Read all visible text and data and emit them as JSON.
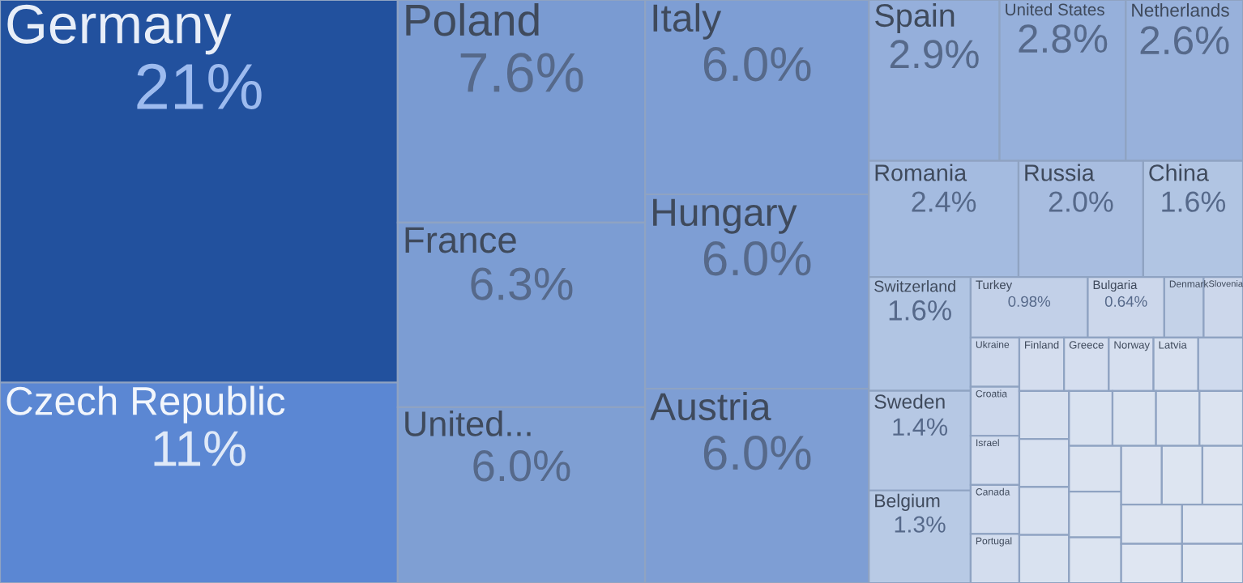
{
  "chart_data": {
    "type": "other",
    "categories": [
      "Germany",
      "Czech Republic",
      "Poland",
      "France",
      "United...",
      "Italy",
      "Hungary",
      "Austria",
      "Spain",
      "United States",
      "Netherlands",
      "Romania",
      "Russia",
      "China",
      "Switzerland",
      "Sweden",
      "Belgium",
      "Turkey",
      "Bulgaria",
      "Denmark",
      "Slovenia",
      "Ukraine",
      "Croatia",
      "Israel",
      "Canada",
      "Portugal",
      "Finland",
      "Greece",
      "Norway",
      "Latvia",
      null,
      null,
      null,
      null,
      null,
      null,
      null,
      null,
      null,
      null,
      null,
      null,
      null,
      null,
      null,
      null,
      null,
      null,
      null
    ],
    "values": [
      21,
      11,
      7.6,
      6.3,
      6.0,
      6.0,
      6.0,
      6.0,
      2.9,
      2.8,
      2.6,
      2.4,
      2.0,
      1.6,
      1.6,
      1.4,
      1.3,
      0.98,
      0.64,
      null,
      null,
      null,
      null,
      null,
      null,
      null,
      null,
      null,
      null,
      null,
      null,
      null,
      null,
      null,
      null,
      null,
      null,
      null,
      null,
      null,
      null,
      null,
      null,
      null,
      null,
      null,
      null,
      null,
      null
    ],
    "value_labels": [
      "21%",
      "11%",
      "7.6%",
      "6.3%",
      "6.0%",
      "6.0%",
      "6.0%",
      "6.0%",
      "2.9%",
      "2.8%",
      "2.6%",
      "2.4%",
      "2.0%",
      "1.6%",
      "1.6%",
      "1.4%",
      "1.3%",
      "0.98%",
      "0.64%",
      null,
      null,
      null,
      null,
      null,
      null,
      null,
      null,
      null,
      null,
      null,
      null,
      null,
      null,
      null,
      null,
      null,
      null,
      null,
      null,
      null,
      null,
      null,
      null,
      null,
      null,
      null,
      null,
      null,
      null
    ],
    "colors": [
      "#22519e",
      "#5b87d3",
      "#7a9bd2",
      "#7c9dd3",
      "#7f9fd3",
      "#7e9ed4",
      "#7e9ed4",
      "#7e9ed4",
      "#95afdb",
      "#96b0db",
      "#98b1db",
      "#a4bbe0",
      "#a8bde0",
      "#b1c5e3",
      "#b1c5e3",
      "#b6c8e4",
      "#b8cae5",
      "#c2d0e8",
      "#ccd7eb",
      "#c4d2e8",
      "#ccd7eb",
      "#cdd8ec",
      "#cdd8ec",
      "#d2dcee",
      "#d2dcee",
      "#d3ddee",
      "#d4ddee",
      "#d5deef",
      "#d6dfef",
      "#d7e0ef",
      "#cfdaed",
      "#d7e0ef",
      "#d8e1f0",
      "#d8e1f0",
      "#d9e2f0",
      "#d9e2f0",
      "#dae3f0",
      "#dae3f0",
      "#dbe3f0",
      "#dbe3f0",
      "#dce4f1",
      "#dce4f1",
      "#dde4f1",
      "#dde5f1",
      "#dee5f1",
      "#dee5f1",
      "#dfe6f2",
      "#dfe6f2",
      "#e0e7f2"
    ]
  }
}
